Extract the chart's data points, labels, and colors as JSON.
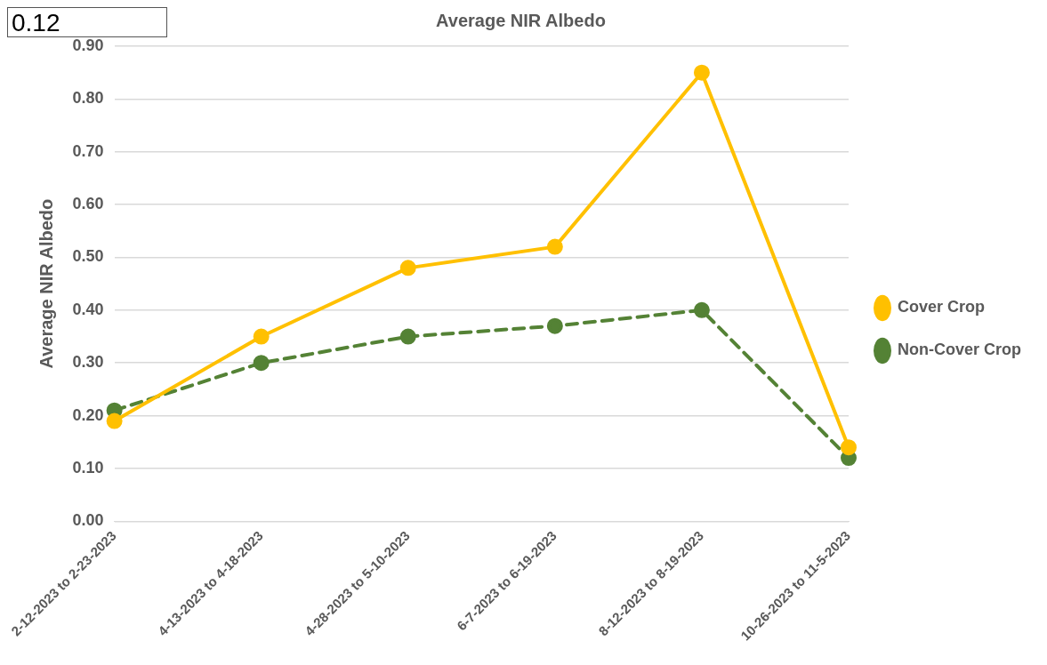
{
  "chart_data": {
    "type": "line",
    "title": "Average NIR Albedo",
    "ylabel": "Average NIR Albedo",
    "annotations": [
      "0.12"
    ],
    "categories": [
      "2-12-2023 to 2-23-2023",
      "4-13-2023 to 4-18-2023",
      "4-28-2023 to 5-10-2023",
      "6-7-2023 to 6-19-2023",
      "8-12-2023 to 8-19-2023",
      "10-26-2023 to 11-5-2023"
    ],
    "series": [
      {
        "name": "Cover Crop",
        "color": "#ffc000",
        "line_style": "solid",
        "values": [
          0.19,
          0.35,
          0.48,
          0.52,
          0.85,
          0.14
        ]
      },
      {
        "name": "Non-Cover Crop",
        "color": "#548235",
        "line_style": "dashed",
        "values": [
          0.21,
          0.3,
          0.35,
          0.37,
          0.4,
          0.12
        ]
      }
    ],
    "ylim": [
      0,
      0.9
    ],
    "yticks": [
      {
        "value": 0,
        "label": "0.00"
      },
      {
        "value": 0.1,
        "label": "0.10"
      },
      {
        "value": 0.2,
        "label": "0.20"
      },
      {
        "value": 0.3,
        "label": "0.30"
      },
      {
        "value": 0.4,
        "label": "0.40"
      },
      {
        "value": 0.5,
        "label": "0.50"
      },
      {
        "value": 0.6,
        "label": "0.60"
      },
      {
        "value": 0.7,
        "label": "0.70"
      },
      {
        "value": 0.8,
        "label": "0.80"
      },
      {
        "value": 0.9,
        "label": "0.90"
      }
    ],
    "grid": "y",
    "legend": "right",
    "marker": "circle"
  }
}
